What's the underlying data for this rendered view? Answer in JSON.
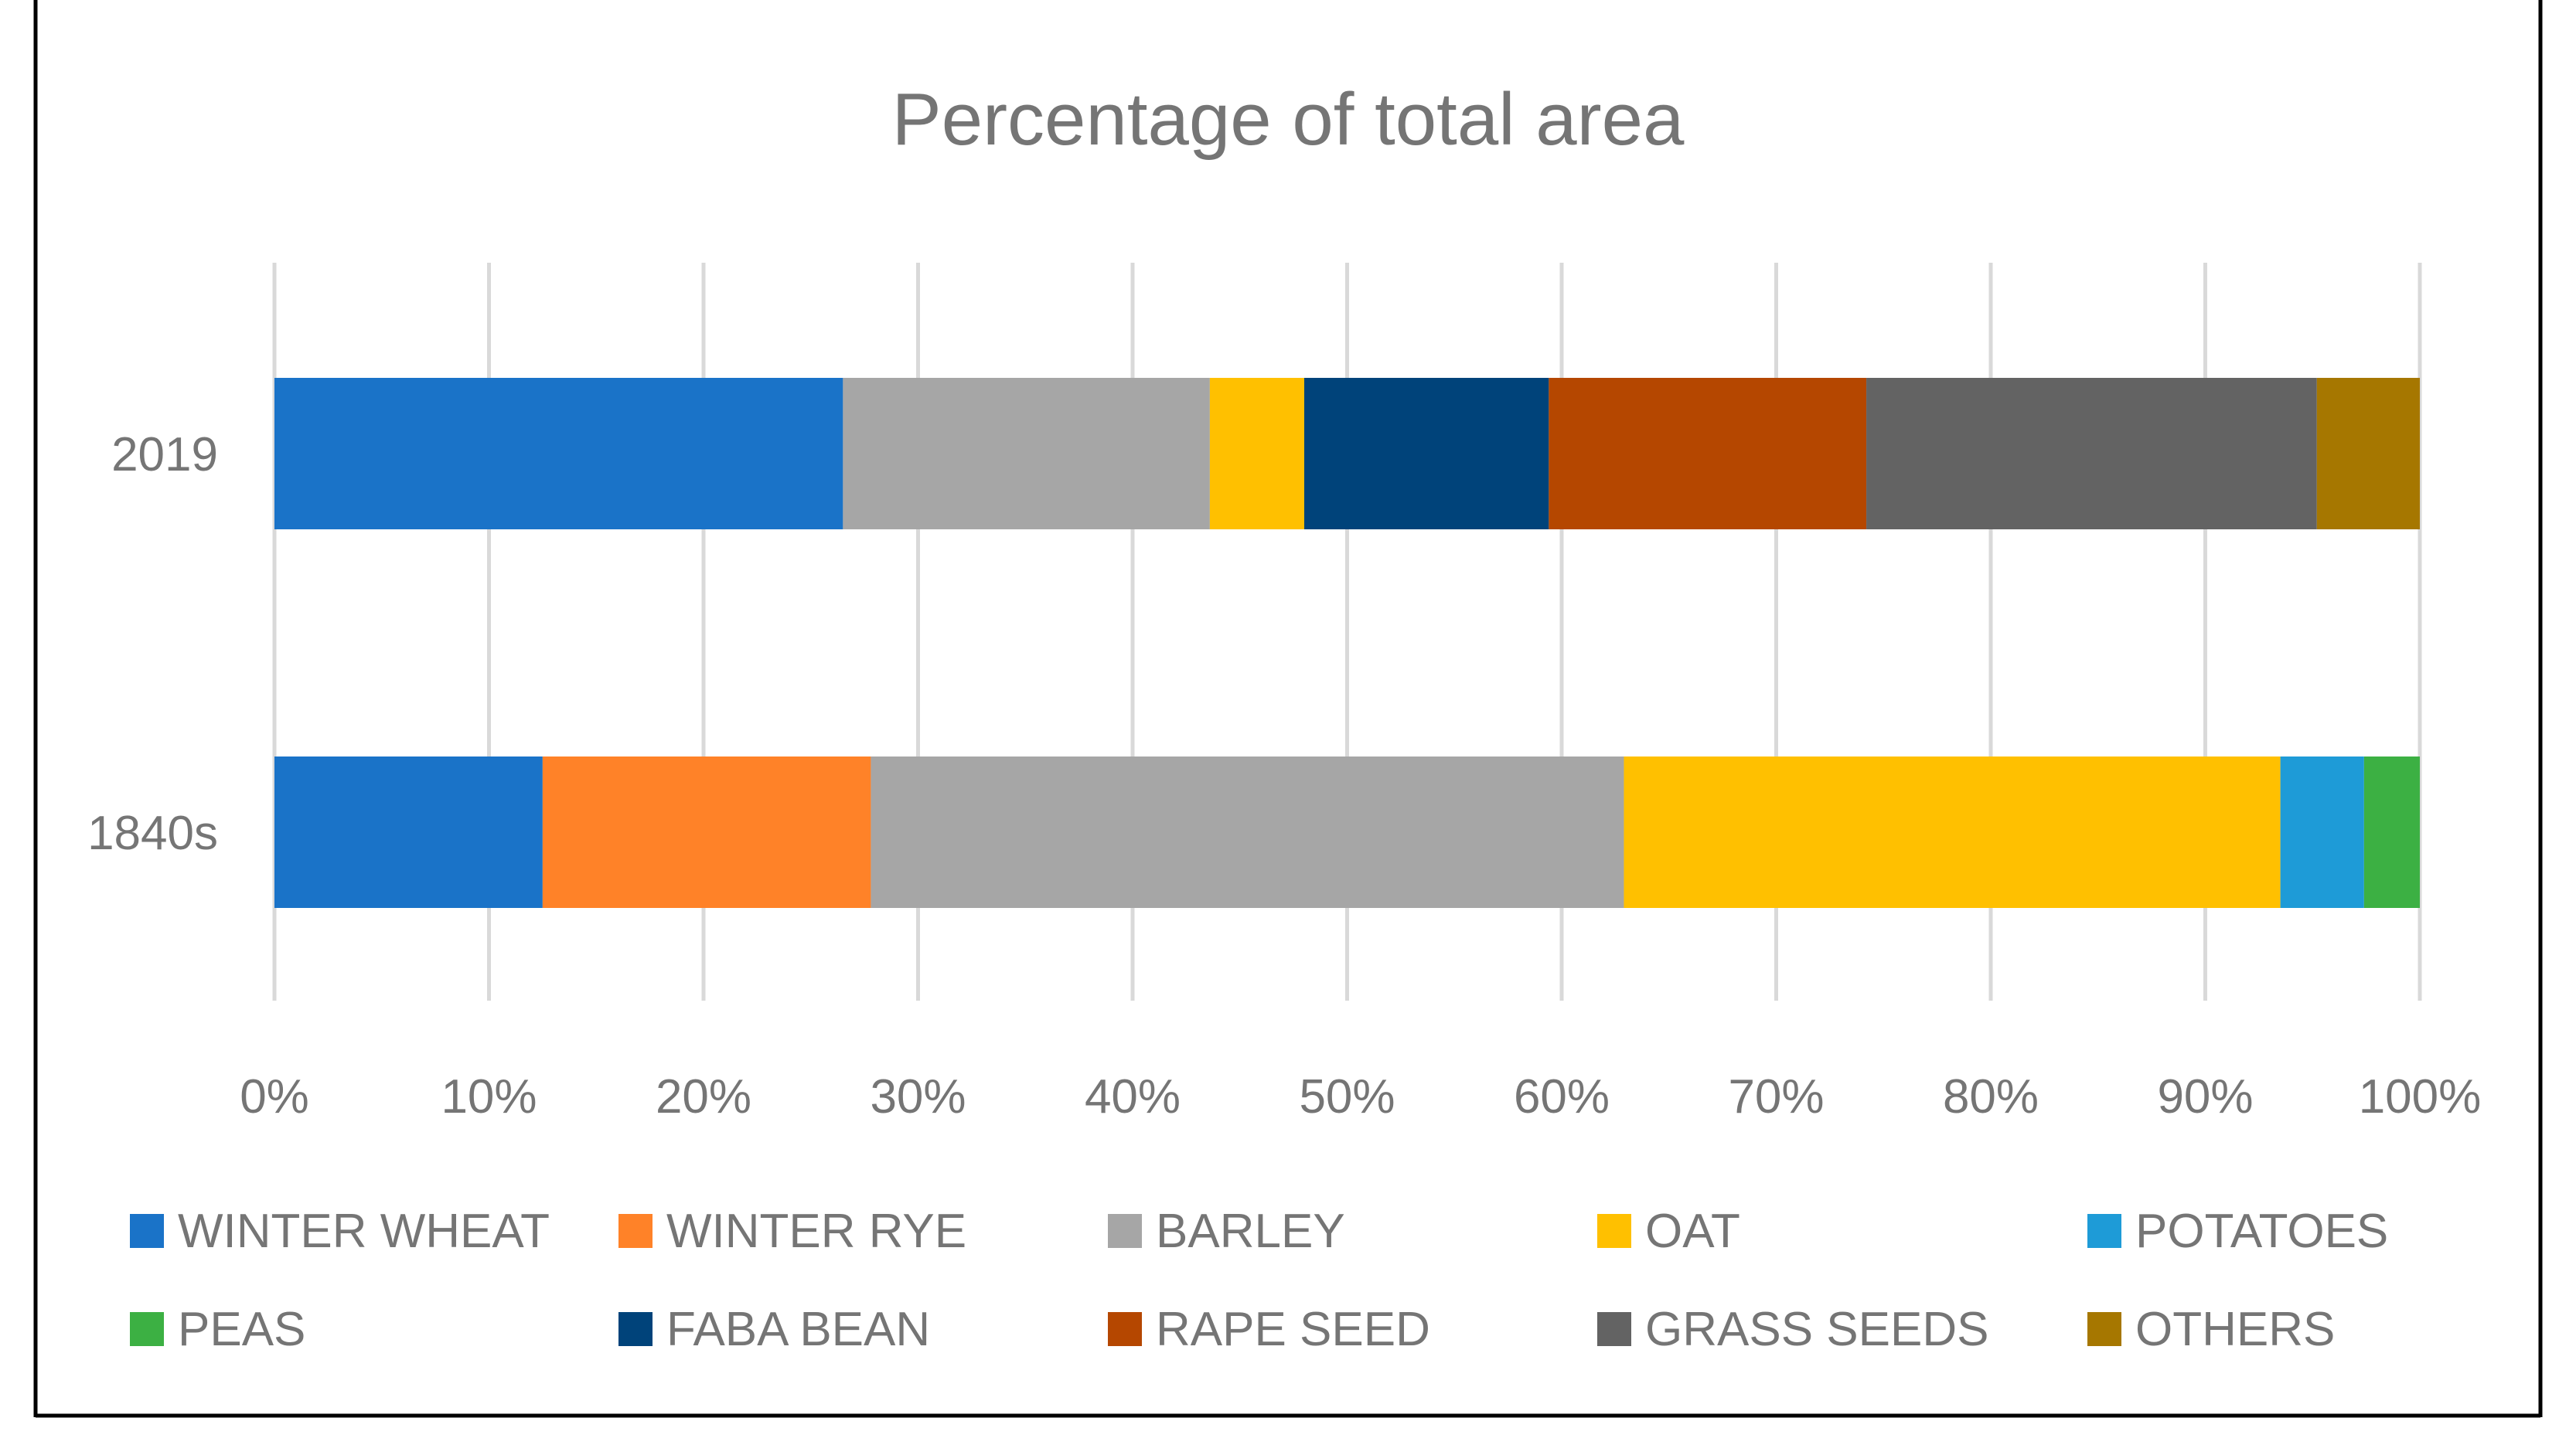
{
  "chart_data": {
    "type": "bar",
    "orientation": "horizontal",
    "stacked": "percent",
    "title": "Percentage of total area",
    "categories": [
      "2019",
      "1840s"
    ],
    "xlim": [
      0,
      100
    ],
    "xticks": [
      "0%",
      "10%",
      "20%",
      "30%",
      "40%",
      "50%",
      "60%",
      "70%",
      "80%",
      "90%",
      "100%"
    ],
    "grid": "vertical",
    "legend_position": "bottom",
    "series": [
      {
        "name": "WINTER WHEAT",
        "color": "#1a73c8",
        "values": [
          26.5,
          12.5
        ]
      },
      {
        "name": "WINTER RYE",
        "color": "#ff8228",
        "values": [
          0,
          15.3
        ]
      },
      {
        "name": "BARLEY",
        "color": "#a6a6a6",
        "values": [
          17.1,
          35.1
        ]
      },
      {
        "name": "OAT",
        "color": "#ffc000",
        "values": [
          4.4,
          30.6
        ]
      },
      {
        "name": "POTATOES",
        "color": "#1e9bd7",
        "values": [
          0,
          3.9
        ]
      },
      {
        "name": "PEAS",
        "color": "#3cb043",
        "values": [
          0,
          2.6
        ]
      },
      {
        "name": "FABA BEAN",
        "color": "#00437a",
        "values": [
          11.4,
          0
        ]
      },
      {
        "name": "RAPE SEED",
        "color": "#b54700",
        "values": [
          14.8,
          0
        ]
      },
      {
        "name": "GRASS SEEDS",
        "color": "#636363",
        "values": [
          21,
          0
        ]
      },
      {
        "name": "OTHERS",
        "color": "#a67700",
        "values": [
          4.8,
          0
        ]
      }
    ]
  }
}
